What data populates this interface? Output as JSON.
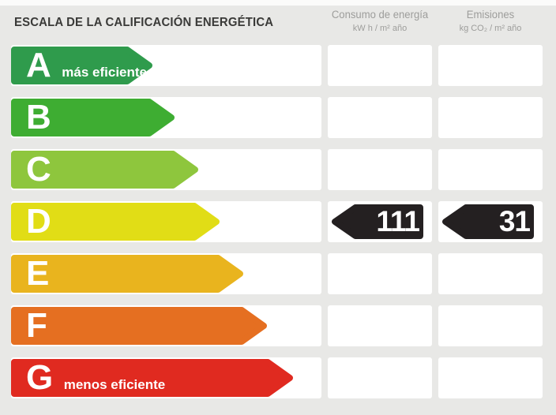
{
  "title": "ESCALA DE LA CALIFICACIÓN ENERGÉTICA",
  "columns": {
    "consumo": {
      "label": "Consumo de energía",
      "units": "kW h / m² año"
    },
    "emisiones": {
      "label": "Emisiones",
      "units": "kg CO₂ / m² año"
    }
  },
  "ratings": [
    {
      "letter": "A",
      "label": "más eficiente",
      "color": "#2f9b4c",
      "arrow_width": 181
    },
    {
      "letter": "B",
      "label": "",
      "color": "#3ead32",
      "arrow_width": 209
    },
    {
      "letter": "C",
      "label": "",
      "color": "#8ec63d",
      "arrow_width": 239
    },
    {
      "letter": "D",
      "label": "",
      "color": "#e1dd16",
      "arrow_width": 266
    },
    {
      "letter": "E",
      "label": "",
      "color": "#e9b41e",
      "arrow_width": 296
    },
    {
      "letter": "F",
      "label": "",
      "color": "#e56f21",
      "arrow_width": 326
    },
    {
      "letter": "G",
      "label": "menos eficiente",
      "color": "#e02a20",
      "arrow_width": 359
    }
  ],
  "values": {
    "rating": "D",
    "consumo": "111",
    "emisiones": "31",
    "arrow_color": "#242021"
  },
  "chart_data": {
    "type": "bar",
    "title": "ESCALA DE LA CALIFICACIÓN ENERGÉTICA",
    "categories": [
      "A",
      "B",
      "C",
      "D",
      "E",
      "F",
      "G"
    ],
    "bar_relative_widths": [
      181,
      209,
      239,
      266,
      296,
      326,
      359
    ],
    "bar_colors": [
      "#2f9b4c",
      "#3ead32",
      "#8ec63d",
      "#e1dd16",
      "#e9b41e",
      "#e56f21",
      "#e02a20"
    ],
    "annotations": {
      "A": "más eficiente",
      "G": "menos eficiente"
    },
    "rating": "D",
    "metrics": [
      {
        "name": "Consumo de energía",
        "units": "kW h / m² año",
        "value": 111
      },
      {
        "name": "Emisiones",
        "units": "kg CO₂ / m² año",
        "value": 31
      }
    ],
    "legend_position": "none",
    "grid": false
  }
}
